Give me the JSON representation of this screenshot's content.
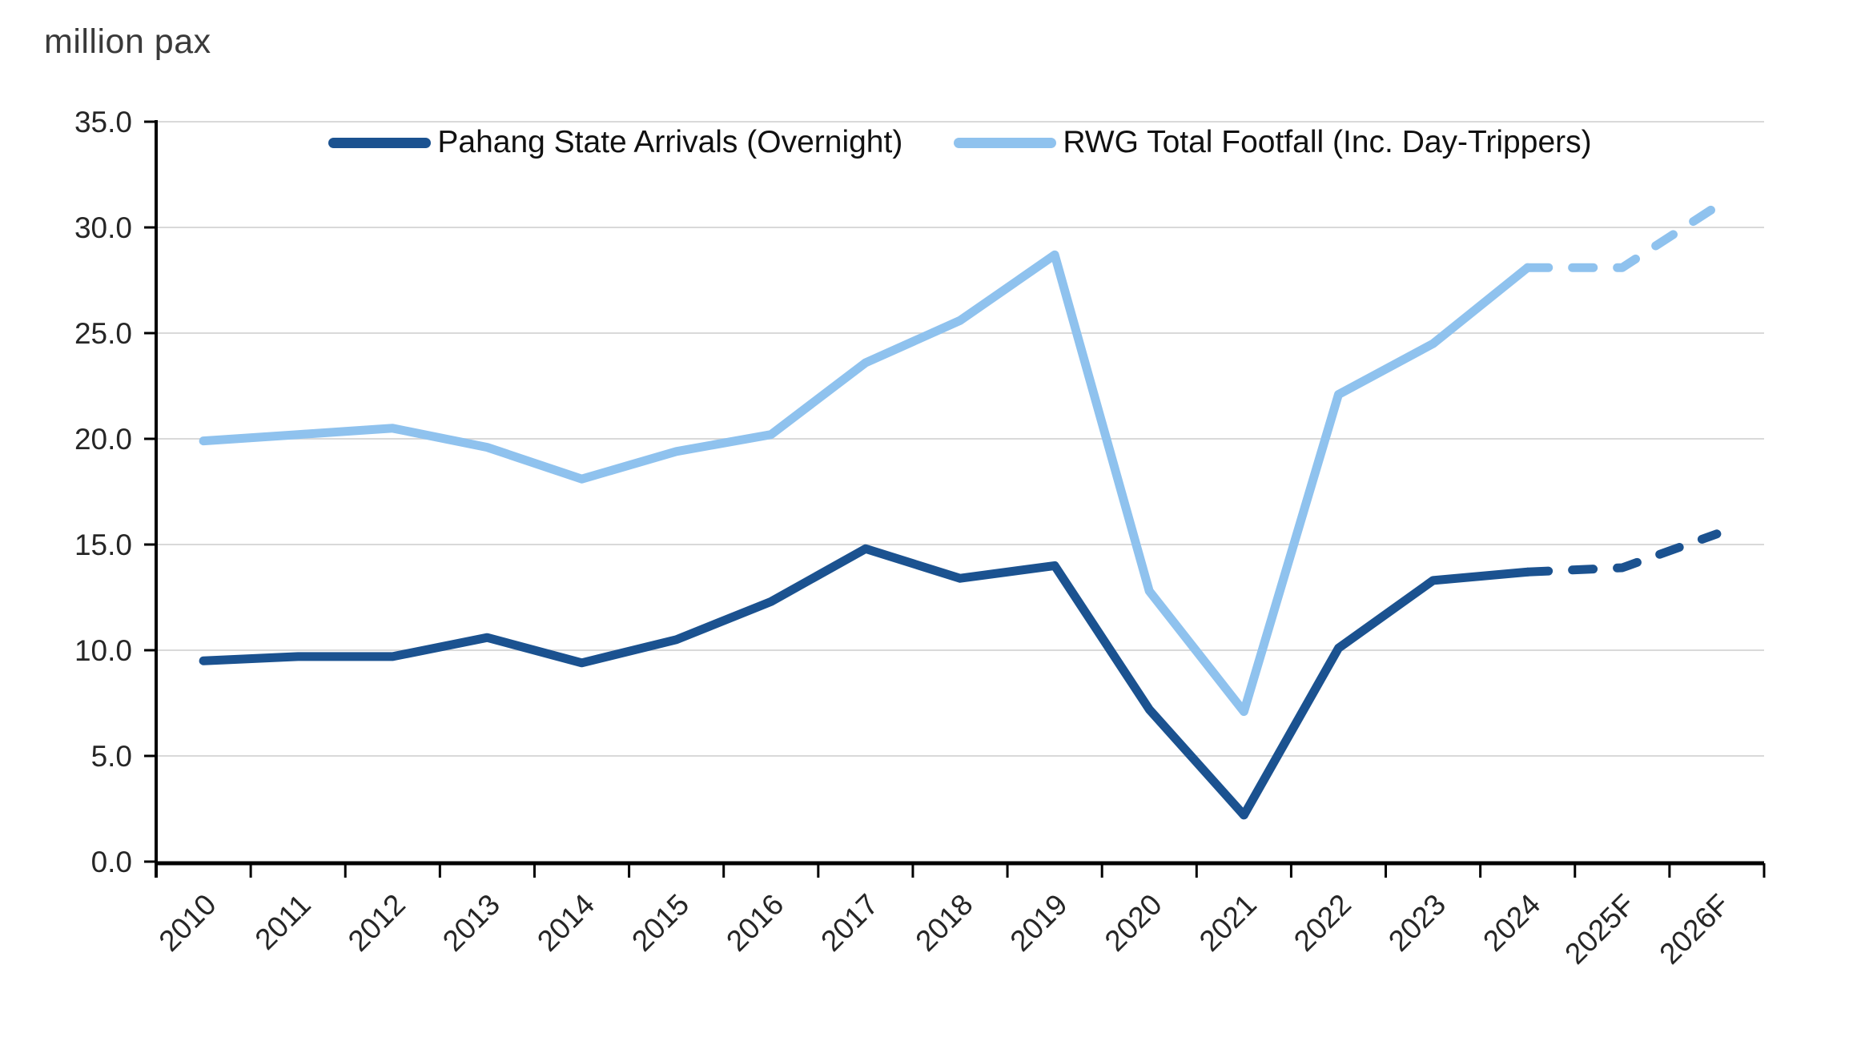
{
  "title": "million pax",
  "legend": [
    {
      "label": "Pahang State Arrivals (Overnight)",
      "color": "#1b5290",
      "style": "solid-then-dashed"
    },
    {
      "label": "RWG Total Footfall (Inc. Day-Trippers)",
      "color": "#8fc2ee",
      "style": "solid-then-dashed"
    }
  ],
  "axes": {
    "y_tick_labels": [
      "0.0",
      "5.0",
      "10.0",
      "15.0",
      "20.0",
      "25.0",
      "30.0",
      "35.0"
    ],
    "x_tick_labels": [
      "2010",
      "2011",
      "2012",
      "2013",
      "2014",
      "2015",
      "2016",
      "2017",
      "2018",
      "2019",
      "2020",
      "2021",
      "2022",
      "2023",
      "2024",
      "2025F",
      "2026F"
    ]
  },
  "chart_data": {
    "type": "line",
    "title": "",
    "ylabel": "million pax",
    "xlabel": "",
    "ylim": [
      0,
      35
    ],
    "ytick_step": 5,
    "grid": true,
    "legend_position": "top-center",
    "forecast_style": "dashed",
    "categories": [
      "2010",
      "2011",
      "2012",
      "2013",
      "2014",
      "2015",
      "2016",
      "2017",
      "2018",
      "2019",
      "2020",
      "2021",
      "2022",
      "2023",
      "2024",
      "2025F",
      "2026F"
    ],
    "series": [
      {
        "name": "Pahang State Arrivals (Overnight)",
        "color": "#1b5290",
        "forecast_from_index": 14,
        "values": [
          9.5,
          9.7,
          9.7,
          10.6,
          9.4,
          10.5,
          12.3,
          14.8,
          13.4,
          14.0,
          7.2,
          2.2,
          10.1,
          13.3,
          13.7,
          13.9,
          15.5
        ]
      },
      {
        "name": "RWG Total Footfall (Inc. Day-Trippers)",
        "color": "#8fc2ee",
        "forecast_from_index": 14,
        "values": [
          19.9,
          20.2,
          20.5,
          19.6,
          18.1,
          19.4,
          20.2,
          23.6,
          25.6,
          28.7,
          12.8,
          7.1,
          22.1,
          24.5,
          28.1,
          28.1,
          31.0
        ]
      }
    ],
    "colors": {
      "grid": "#d9d9d9",
      "axis": "#000000",
      "tick_text": "#262626"
    }
  }
}
